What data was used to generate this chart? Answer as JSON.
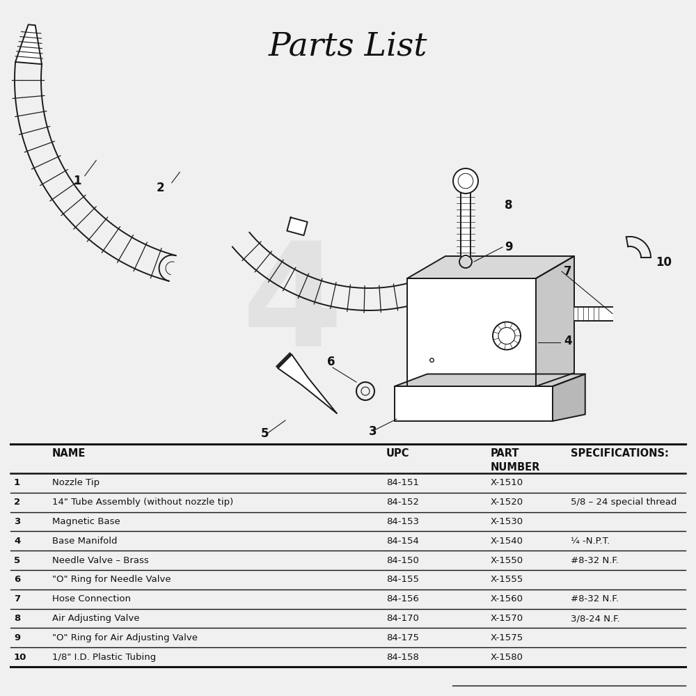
{
  "title": "Parts List",
  "title_fontsize": 34,
  "title_style": "italic",
  "title_font": "serif",
  "background_color": "#f0f0f0",
  "table_headers_row1": [
    "",
    "NAME",
    "UPC",
    "PART",
    "SPECIFICATIONS:"
  ],
  "table_headers_row2": [
    "",
    "",
    "",
    "NUMBER",
    ""
  ],
  "table_rows": [
    [
      "1",
      "Nozzle Tip",
      "84-151",
      "X-1510",
      ""
    ],
    [
      "2",
      "14\" Tube Assembly (without nozzle tip)",
      "84-152",
      "X-1520",
      "5/8 – 24 special thread"
    ],
    [
      "3",
      "Magnetic Base",
      "84-153",
      "X-1530",
      ""
    ],
    [
      "4",
      "Base Manifold",
      "84-154",
      "X-1540",
      "¼ -N.P.T."
    ],
    [
      "5",
      "Needle Valve – Brass",
      "84-150",
      "X-1550",
      "#8-32 N.F."
    ],
    [
      "6",
      "\"O\" Ring for Needle Valve",
      "84-155",
      "X-1555",
      ""
    ],
    [
      "7",
      "Hose Connection",
      "84-156",
      "X-1560",
      "#8-32 N.F."
    ],
    [
      "8",
      "Air Adjusting Valve",
      "84-170",
      "X-1570",
      "3/8-24 N.F."
    ],
    [
      "9",
      "\"O\" Ring for Air Adjusting Valve",
      "84-175",
      "X-1575",
      ""
    ],
    [
      "10",
      "1/8\" I.D. Plastic Tubing",
      "84-158",
      "X-1580",
      ""
    ]
  ],
  "line_color": "#1a1a1a",
  "watermark_text": "4",
  "table_font_size": 9.5,
  "header_font_size": 10.5
}
